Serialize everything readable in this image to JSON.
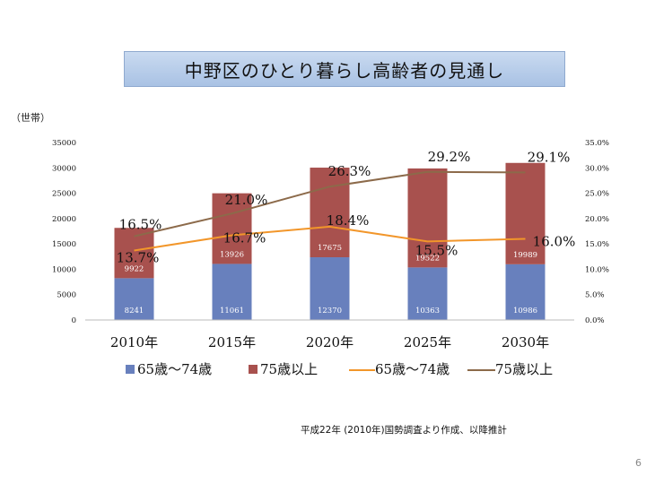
{
  "title": "中野区のひとり暮らし高齢者の見通し",
  "unit": "（世帯）",
  "source": "平成22年 (2010年)国勢調査より作成、以降推計",
  "page_number": "6",
  "colors": {
    "bar_65_74": "#6880bd",
    "bar_75": "#a8514e",
    "line_65_74": "#f2962a",
    "line_75": "#8c6a4a"
  },
  "chart_data": {
    "type": "bar",
    "stacked": true,
    "categories": [
      "2010年",
      "2015年",
      "2020年",
      "2025年",
      "2030年"
    ],
    "series": [
      {
        "name": "65歳〜74歳",
        "kind": "bar",
        "values": [
          8241,
          11061,
          12370,
          10363,
          10986
        ]
      },
      {
        "name": "75歳以上",
        "kind": "bar",
        "values": [
          9922,
          13926,
          17675,
          19522,
          19989
        ]
      },
      {
        "name": "65歳〜74歳",
        "kind": "line",
        "axis": "right",
        "values": [
          13.7,
          16.7,
          18.4,
          15.5,
          16.0
        ],
        "labels": [
          "13.7%",
          "16.7%",
          "18.4%",
          "15.5%",
          "16.0%"
        ]
      },
      {
        "name": "75歳以上",
        "kind": "line",
        "axis": "right",
        "values": [
          16.5,
          21.0,
          26.3,
          29.2,
          29.1
        ],
        "labels": [
          "16.5%",
          "21.0%",
          "26.3%",
          "29.2%",
          "29.1%"
        ]
      }
    ],
    "ylim": [
      0,
      35000
    ],
    "y_ticks": [
      "0",
      "5000",
      "10000",
      "15000",
      "20000",
      "25000",
      "30000",
      "35000"
    ],
    "y2lim": [
      0,
      35
    ],
    "y2_ticks": [
      "0.0%",
      "5.0%",
      "10.0%",
      "15.0%",
      "20.0%",
      "25.0%",
      "30.0%",
      "35.0%"
    ],
    "legend": [
      "65歳〜74歳",
      "75歳以上",
      "65歳〜74歳",
      "75歳以上"
    ],
    "legend_position": "bottom"
  }
}
